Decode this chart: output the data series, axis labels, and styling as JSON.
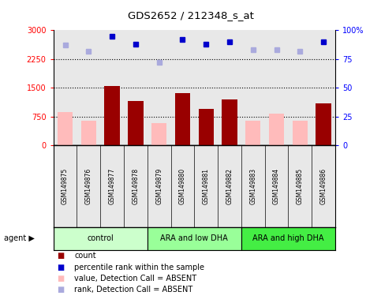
{
  "title": "GDS2652 / 212348_s_at",
  "samples": [
    "GSM149875",
    "GSM149876",
    "GSM149877",
    "GSM149878",
    "GSM149879",
    "GSM149880",
    "GSM149881",
    "GSM149882",
    "GSM149883",
    "GSM149884",
    "GSM149885",
    "GSM149886"
  ],
  "groups": [
    {
      "label": "control",
      "color": "#ccffcc",
      "start": 0,
      "end": 4
    },
    {
      "label": "ARA and low DHA",
      "color": "#99ff99",
      "start": 4,
      "end": 8
    },
    {
      "label": "ARA and high DHA",
      "color": "#44ee44",
      "start": 8,
      "end": 12
    }
  ],
  "count_values": [
    null,
    null,
    1540,
    1150,
    null,
    1370,
    950,
    1200,
    null,
    null,
    null,
    1100
  ],
  "value_absent": [
    870,
    650,
    null,
    null,
    580,
    null,
    null,
    null,
    650,
    820,
    650,
    null
  ],
  "rank_absent_pct": [
    87,
    82,
    95,
    88,
    72,
    92,
    88,
    90,
    83,
    83,
    82,
    90
  ],
  "percentile_dark": [
    false,
    false,
    true,
    true,
    false,
    true,
    true,
    true,
    false,
    false,
    false,
    true
  ],
  "ylim_left": [
    0,
    3000
  ],
  "ylim_right": [
    0,
    100
  ],
  "yticks_left": [
    0,
    750,
    1500,
    2250,
    3000
  ],
  "yticks_right": [
    0,
    25,
    50,
    75,
    100
  ],
  "background_color": "#e8e8e8",
  "bar_color_count": "#990000",
  "bar_color_absent": "#ffbbbb",
  "dot_color_dark": "#0000cc",
  "dot_color_light": "#aaaadd",
  "legend_items": [
    {
      "color": "#990000",
      "label": "count"
    },
    {
      "color": "#0000cc",
      "label": "percentile rank within the sample"
    },
    {
      "color": "#ffbbbb",
      "label": "value, Detection Call = ABSENT"
    },
    {
      "color": "#aaaadd",
      "label": "rank, Detection Call = ABSENT"
    }
  ]
}
